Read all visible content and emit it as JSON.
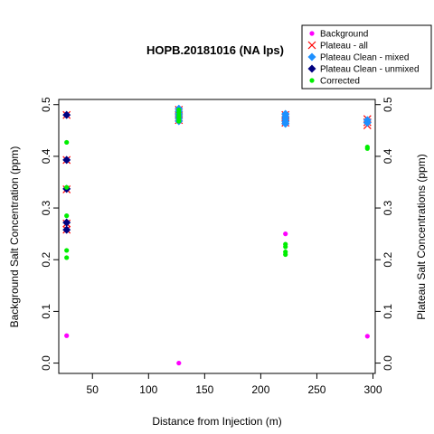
{
  "chart_data": {
    "type": "scatter",
    "title": "HOPB.20181016 (NA lps)",
    "xlabel": "Distance from Injection (m)",
    "ylabel": "Background Salt Concentration (ppm)",
    "y2label": "Plateau Salt Concentrations (ppm)",
    "xlim": [
      20,
      302
    ],
    "ylim": [
      -0.02,
      0.51
    ],
    "xticks": [
      "50",
      "100",
      "150",
      "200",
      "250",
      "300"
    ],
    "yticks": [
      "0.0",
      "0.1",
      "0.2",
      "0.3",
      "0.4",
      "0.5"
    ],
    "grid": false,
    "legend_position": "top-right",
    "series": [
      {
        "name": "Background",
        "marker": "dot",
        "color": "#ff00ff",
        "points": [
          [
            27,
            0.053
          ],
          [
            127,
            0.0
          ],
          [
            222,
            0.25
          ],
          [
            295,
            0.052
          ]
        ]
      },
      {
        "name": "Plateau - all",
        "marker": "x",
        "color": "#ff0000",
        "points": [
          [
            27,
            0.48
          ],
          [
            27,
            0.393
          ],
          [
            27,
            0.336
          ],
          [
            27,
            0.27
          ],
          [
            27,
            0.258
          ],
          [
            127,
            0.49
          ],
          [
            127,
            0.485
          ],
          [
            127,
            0.48
          ],
          [
            127,
            0.475
          ],
          [
            127,
            0.47
          ],
          [
            222,
            0.48
          ],
          [
            222,
            0.475
          ],
          [
            222,
            0.47
          ],
          [
            222,
            0.465
          ],
          [
            295,
            0.472
          ],
          [
            295,
            0.466
          ],
          [
            295,
            0.46
          ]
        ]
      },
      {
        "name": "Plateau Clean - mixed",
        "marker": "diamond",
        "color": "#1e90ff",
        "points": [
          [
            127,
            0.492
          ],
          [
            127,
            0.487
          ],
          [
            127,
            0.482
          ],
          [
            127,
            0.478
          ],
          [
            127,
            0.473
          ],
          [
            127,
            0.468
          ],
          [
            222,
            0.482
          ],
          [
            222,
            0.477
          ],
          [
            222,
            0.472
          ],
          [
            222,
            0.467
          ],
          [
            222,
            0.463
          ],
          [
            295,
            0.47
          ],
          [
            295,
            0.465
          ]
        ]
      },
      {
        "name": "Plateau Clean - unmixed",
        "marker": "diamond",
        "color": "#000080",
        "points": [
          [
            27,
            0.48
          ],
          [
            27,
            0.393
          ],
          [
            27,
            0.337
          ],
          [
            27,
            0.272
          ],
          [
            27,
            0.258
          ]
        ]
      },
      {
        "name": "Corrected",
        "marker": "dot",
        "color": "#00ee00",
        "points": [
          [
            27,
            0.427
          ],
          [
            27,
            0.34
          ],
          [
            27,
            0.285
          ],
          [
            27,
            0.218
          ],
          [
            27,
            0.204
          ],
          [
            127,
            0.49
          ],
          [
            127,
            0.485
          ],
          [
            127,
            0.48
          ],
          [
            127,
            0.476
          ],
          [
            127,
            0.472
          ],
          [
            127,
            0.468
          ],
          [
            222,
            0.23
          ],
          [
            222,
            0.225
          ],
          [
            222,
            0.215
          ],
          [
            222,
            0.21
          ],
          [
            295,
            0.418
          ],
          [
            295,
            0.415
          ]
        ]
      }
    ]
  }
}
